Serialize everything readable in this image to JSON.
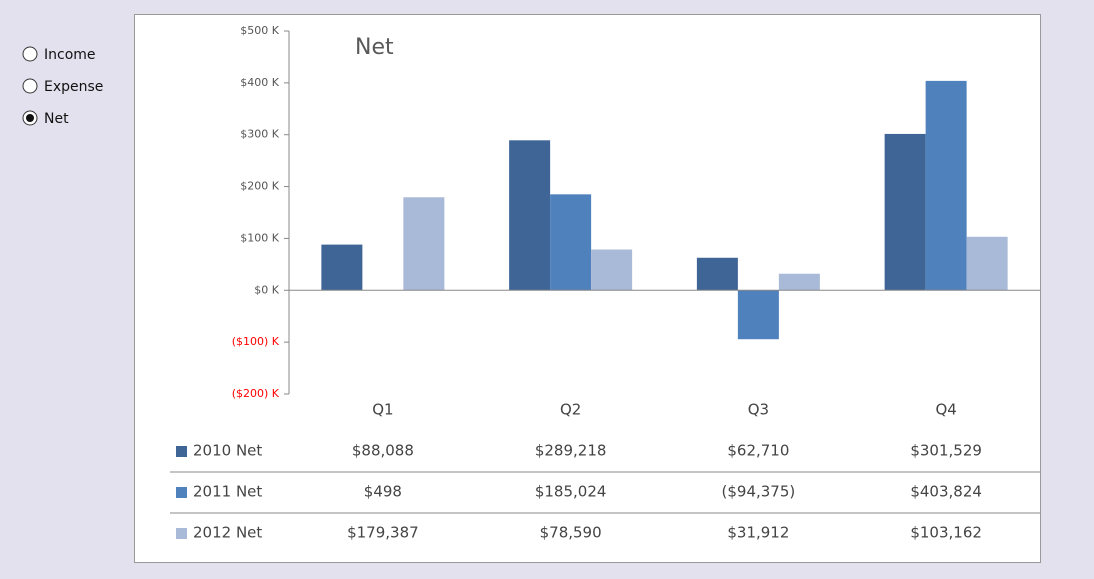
{
  "controls": {
    "options": [
      "Income",
      "Expense",
      "Net"
    ],
    "selected": 2
  },
  "chart_data": {
    "type": "bar",
    "title": "Net",
    "categories": [
      "Q1",
      "Q2",
      "Q3",
      "Q4"
    ],
    "series": [
      {
        "name": "2010 Net",
        "color": "#3f6597",
        "values": [
          88088,
          289218,
          62710,
          301529
        ],
        "value_labels": [
          "$88,088",
          "$289,218",
          "$62,710",
          "$301,529"
        ]
      },
      {
        "name": "2011 Net",
        "color": "#4f81bd",
        "values": [
          498,
          185024,
          -94375,
          403824
        ],
        "value_labels": [
          "$498",
          "$185,024",
          "($94,375)",
          "$403,824"
        ]
      },
      {
        "name": "2012 Net",
        "color": "#a9b9d8",
        "values": [
          179387,
          78590,
          31912,
          103162
        ],
        "value_labels": [
          "$179,387",
          "$78,590",
          "$31,912",
          "$103,162"
        ]
      }
    ],
    "ylim": [
      -200000,
      500000
    ],
    "yticks": [
      {
        "value": 500000,
        "label": "$500 K"
      },
      {
        "value": 400000,
        "label": "$400 K"
      },
      {
        "value": 300000,
        "label": "$300 K"
      },
      {
        "value": 200000,
        "label": "$200 K"
      },
      {
        "value": 100000,
        "label": "$100 K"
      },
      {
        "value": 0,
        "label": "$0 K"
      },
      {
        "value": -100000,
        "label": "($100) K"
      },
      {
        "value": -200000,
        "label": "($200) K"
      }
    ]
  }
}
